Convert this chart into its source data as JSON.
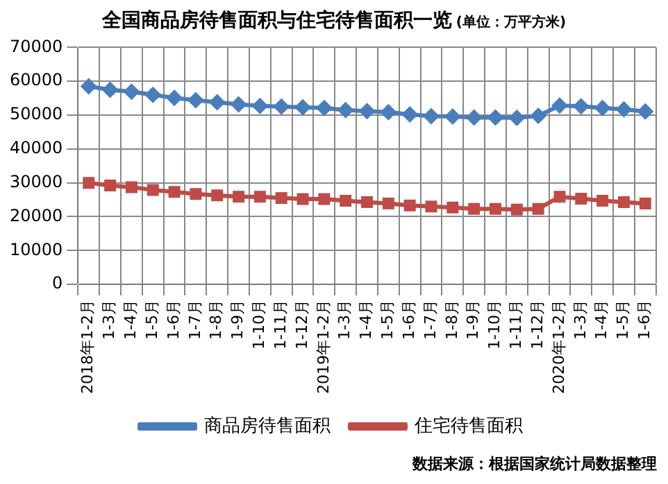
{
  "chart_data": {
    "type": "line",
    "title": "全国商品房待售面积与住宅待售面积一览",
    "subtitle": "(单位：万平方米)",
    "categories": [
      "2018年1-2月",
      "1-3月",
      "1-4月",
      "1-5月",
      "1-6月",
      "1-7月",
      "1-8月",
      "1-9月",
      "1-10月",
      "1-11月",
      "1-12月",
      "2019年1-2月",
      "1-3月",
      "1-4月",
      "1-5月",
      "1-6月",
      "1-7月",
      "1-8月",
      "1-9月",
      "1-10月",
      "1-11月",
      "1-12月",
      "2020年1-2月",
      "1-3月",
      "1-4月",
      "1-5月",
      "1-6月"
    ],
    "series": [
      {
        "name": "商品房待售面积",
        "color": "#4a7ebb",
        "marker": "diamond",
        "values": [
          58500,
          57500,
          56900,
          56000,
          55100,
          54400,
          53800,
          53200,
          52700,
          52500,
          52300,
          52100,
          51500,
          51200,
          50900,
          50200,
          49700,
          49600,
          49300,
          49300,
          49200,
          49800,
          52800,
          52600,
          52100,
          51700,
          51100
        ]
      },
      {
        "name": "住宅待售面积",
        "color": "#be4b48",
        "marker": "square",
        "values": [
          30000,
          29200,
          28700,
          27900,
          27300,
          26700,
          26300,
          25900,
          25900,
          25500,
          25200,
          25200,
          24700,
          24300,
          23900,
          23300,
          23000,
          22700,
          22300,
          22300,
          22100,
          22300,
          25900,
          25300,
          24700,
          24300,
          23900
        ]
      }
    ],
    "ylim": [
      0,
      70000
    ],
    "yticks": [
      0,
      10000,
      20000,
      30000,
      40000,
      50000,
      60000,
      70000
    ],
    "grid": true,
    "legend": "bottom",
    "annotations": [
      "数据来源：根据国家统计局数据整理"
    ]
  }
}
